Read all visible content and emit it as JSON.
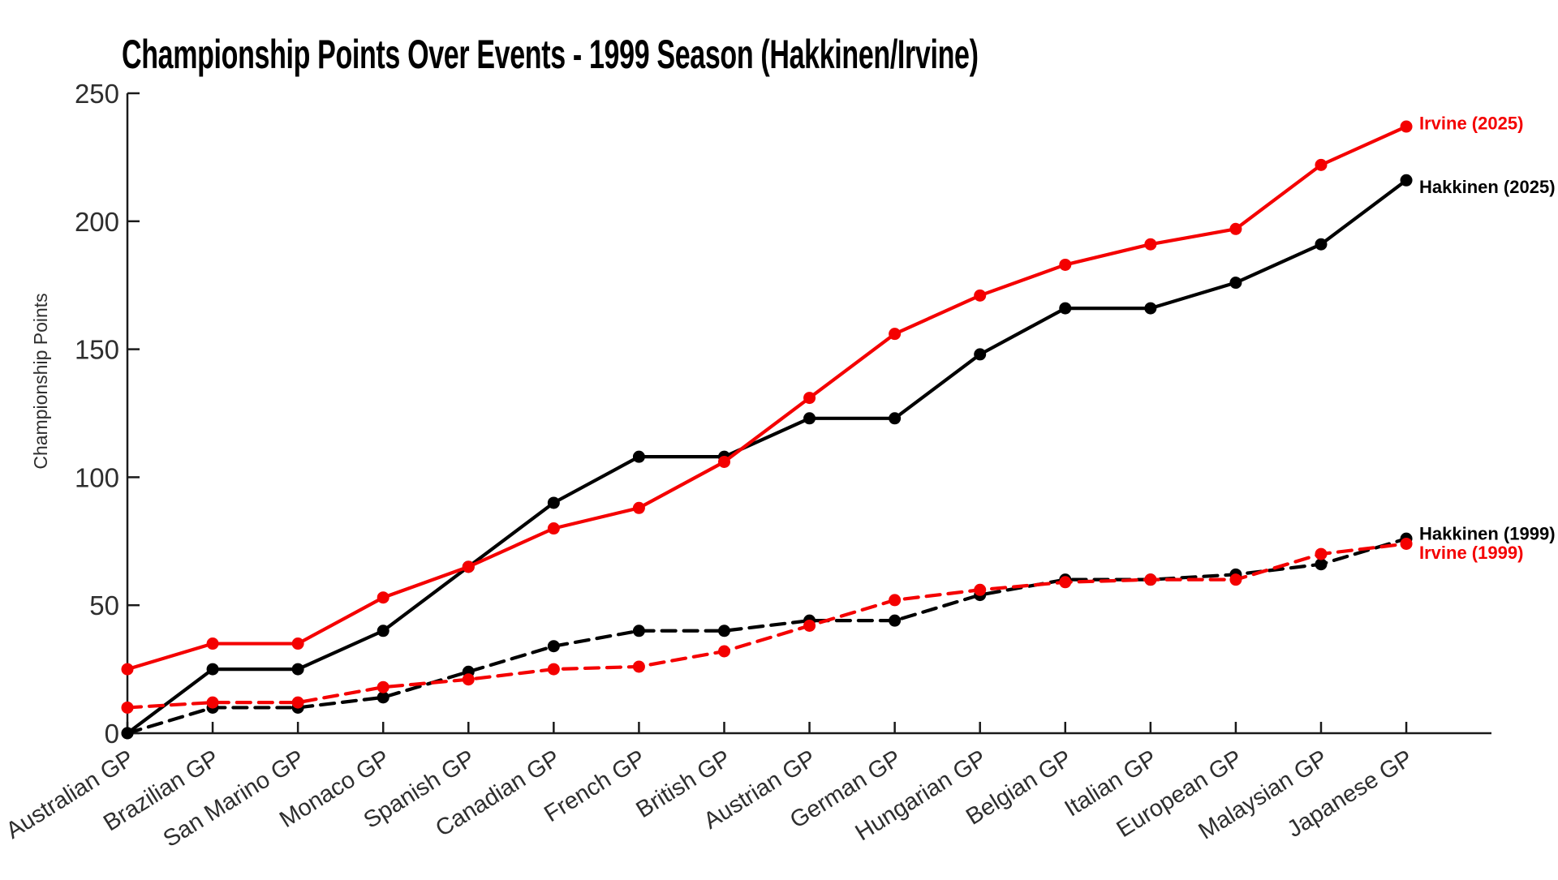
{
  "title": "Championship Points Over Events - 1999 Season (Hakkinen/Irvine)",
  "colors": {
    "red": "#f40000",
    "black": "#000000",
    "axis": "#1a1a1a",
    "tick_text": "#2e2e2e"
  },
  "chart_data": {
    "type": "line",
    "title": "Championship Points Over Events - 1999 Season (Hakkinen/Irvine)",
    "xlabel": "",
    "ylabel": "Championship Points",
    "ylim": [
      0,
      250
    ],
    "yticks": [
      0,
      50,
      100,
      150,
      200,
      250
    ],
    "grid": false,
    "legend_position": "line-end-labels",
    "categories": [
      "Australian GP",
      "Brazilian GP",
      "San Marino GP",
      "Monaco GP",
      "Spanish GP",
      "Canadian GP",
      "French GP",
      "British GP",
      "Austrian GP",
      "German GP",
      "Hungarian GP",
      "Belgian GP",
      "Italian GP",
      "European GP",
      "Malaysian GP",
      "Japanese GP"
    ],
    "series": [
      {
        "name": "Hakkinen (2025)",
        "color": "#000000",
        "style": "solid",
        "values": [
          0,
          25,
          25,
          40,
          65,
          90,
          108,
          108,
          123,
          123,
          148,
          166,
          166,
          176,
          191,
          216
        ]
      },
      {
        "name": "Irvine (2025)",
        "color": "#f40000",
        "style": "solid",
        "values": [
          25,
          35,
          35,
          53,
          65,
          80,
          88,
          106,
          131,
          156,
          171,
          183,
          191,
          197,
          222,
          237
        ]
      },
      {
        "name": "Hakkinen (1999)",
        "color": "#000000",
        "style": "dashed",
        "values": [
          0,
          10,
          10,
          14,
          24,
          34,
          40,
          40,
          44,
          44,
          54,
          60,
          60,
          62,
          66,
          76
        ]
      },
      {
        "name": "Irvine (1999)",
        "color": "#f40000",
        "style": "dashed",
        "values": [
          10,
          12,
          12,
          18,
          21,
          25,
          26,
          32,
          42,
          52,
          56,
          59,
          60,
          60,
          70,
          74
        ]
      }
    ]
  }
}
